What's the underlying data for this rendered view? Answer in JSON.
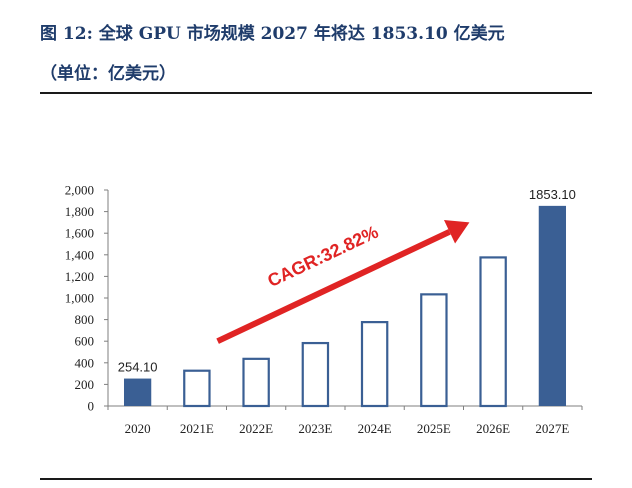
{
  "header": {
    "title_line1": "图 12: 全球 GPU 市场规模 2027 年将达 1853.10 亿美元",
    "title_line2": "（单位：亿美元）"
  },
  "chart_data": {
    "type": "bar",
    "categories": [
      "2020",
      "2021E",
      "2022E",
      "2023E",
      "2024E",
      "2025E",
      "2026E",
      "2027E"
    ],
    "values": [
      254.1,
      336,
      446,
      592,
      786,
      1043,
      1385,
      1853.1
    ],
    "filled": [
      true,
      false,
      false,
      false,
      false,
      false,
      false,
      true
    ],
    "data_labels": {
      "0": "254.10",
      "7": "1853.10"
    },
    "ylim": [
      0,
      2000
    ],
    "yticks": [
      0,
      200,
      400,
      600,
      800,
      1000,
      1200,
      1400,
      1600,
      1800,
      2000
    ],
    "ytick_labels": [
      "0",
      "200",
      "400",
      "600",
      "800",
      "1,000",
      "1,200",
      "1,400",
      "1,600",
      "1,800",
      "2,000"
    ],
    "annotation": "CAGR:32.82%",
    "title": "",
    "xlabel": "",
    "ylabel": "",
    "grid": false,
    "colors": {
      "bar": "#3a5f94",
      "annotation": "#e02424",
      "axis": "#7f7f7f"
    }
  }
}
